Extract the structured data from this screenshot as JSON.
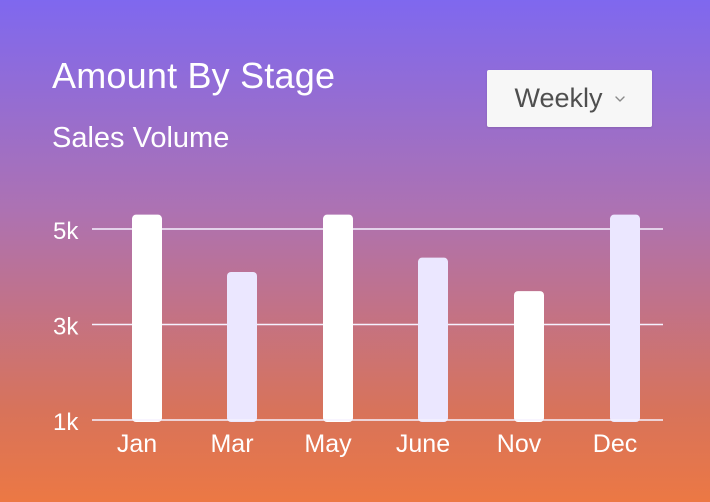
{
  "header": {
    "title": "Amount By Stage",
    "subtitle": "Sales Volume"
  },
  "filter": {
    "selected": "Weekly"
  },
  "chart_data": {
    "type": "bar",
    "categories": [
      "Jan",
      "Mar",
      "May",
      "June",
      "Nov",
      "Dec"
    ],
    "values": [
      5300,
      4100,
      5300,
      4400,
      3700,
      5300
    ],
    "y_ticks": [
      "1k",
      "3k",
      "5k"
    ],
    "ylim": [
      1000,
      5000
    ],
    "grid": true,
    "colors": {
      "primary_bar": "#ffffff",
      "secondary_bar": "#ebe7ff",
      "grid": "#f5f2ff"
    }
  }
}
